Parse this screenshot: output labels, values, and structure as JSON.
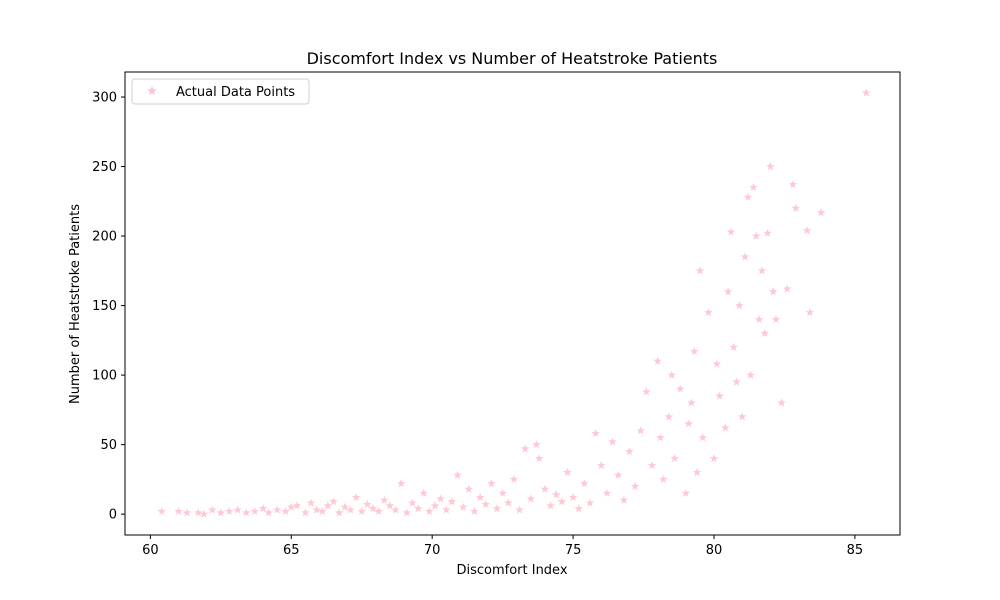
{
  "chart_data": {
    "type": "scatter",
    "title": "Discomfort Index vs Number of Heatstroke Patients",
    "xlabel": "Discomfort Index",
    "ylabel": "Number of Heatstroke Patients",
    "xlim": [
      59.1,
      86.6
    ],
    "ylim": [
      -15,
      318
    ],
    "xticks": [
      60,
      65,
      70,
      75,
      80,
      85
    ],
    "yticks": [
      0,
      50,
      100,
      150,
      200,
      250,
      300
    ],
    "grid": false,
    "legend_position": "top-left",
    "marker": "star",
    "marker_color": "#ffc0cb",
    "series": [
      {
        "name": "Actual Data Points",
        "points": [
          [
            60.4,
            2
          ],
          [
            61.0,
            2
          ],
          [
            61.3,
            1
          ],
          [
            61.7,
            1
          ],
          [
            61.9,
            0
          ],
          [
            62.2,
            3
          ],
          [
            62.5,
            1
          ],
          [
            62.8,
            2
          ],
          [
            63.1,
            3
          ],
          [
            63.4,
            1
          ],
          [
            63.7,
            2
          ],
          [
            64.0,
            4
          ],
          [
            64.2,
            1
          ],
          [
            64.5,
            3
          ],
          [
            64.8,
            2
          ],
          [
            65.0,
            5
          ],
          [
            65.2,
            6
          ],
          [
            65.5,
            1
          ],
          [
            65.7,
            8
          ],
          [
            65.9,
            3
          ],
          [
            66.1,
            2
          ],
          [
            66.3,
            6
          ],
          [
            66.5,
            9
          ],
          [
            66.7,
            1
          ],
          [
            66.9,
            5
          ],
          [
            67.1,
            3
          ],
          [
            67.3,
            12
          ],
          [
            67.5,
            2
          ],
          [
            67.7,
            7
          ],
          [
            67.9,
            4
          ],
          [
            68.1,
            2
          ],
          [
            68.3,
            10
          ],
          [
            68.5,
            6
          ],
          [
            68.7,
            3
          ],
          [
            68.9,
            22
          ],
          [
            69.1,
            1
          ],
          [
            69.3,
            8
          ],
          [
            69.5,
            4
          ],
          [
            69.7,
            15
          ],
          [
            69.9,
            2
          ],
          [
            70.1,
            6
          ],
          [
            70.3,
            11
          ],
          [
            70.5,
            3
          ],
          [
            70.7,
            9
          ],
          [
            70.9,
            28
          ],
          [
            71.1,
            5
          ],
          [
            71.3,
            18
          ],
          [
            71.5,
            2
          ],
          [
            71.7,
            12
          ],
          [
            71.9,
            7
          ],
          [
            72.1,
            22
          ],
          [
            72.3,
            4
          ],
          [
            72.5,
            15
          ],
          [
            72.7,
            8
          ],
          [
            72.9,
            25
          ],
          [
            73.1,
            3
          ],
          [
            73.3,
            47
          ],
          [
            73.5,
            11
          ],
          [
            73.7,
            50
          ],
          [
            73.8,
            40
          ],
          [
            74.0,
            18
          ],
          [
            74.2,
            6
          ],
          [
            74.4,
            14
          ],
          [
            74.6,
            9
          ],
          [
            74.8,
            30
          ],
          [
            75.0,
            12
          ],
          [
            75.2,
            4
          ],
          [
            75.4,
            22
          ],
          [
            75.6,
            8
          ],
          [
            75.8,
            58
          ],
          [
            76.0,
            35
          ],
          [
            76.2,
            15
          ],
          [
            76.4,
            52
          ],
          [
            76.6,
            28
          ],
          [
            76.8,
            10
          ],
          [
            77.0,
            45
          ],
          [
            77.2,
            20
          ],
          [
            77.4,
            60
          ],
          [
            77.6,
            88
          ],
          [
            77.8,
            35
          ],
          [
            78.0,
            110
          ],
          [
            78.1,
            55
          ],
          [
            78.2,
            25
          ],
          [
            78.4,
            70
          ],
          [
            78.5,
            100
          ],
          [
            78.6,
            40
          ],
          [
            78.8,
            90
          ],
          [
            79.0,
            15
          ],
          [
            79.1,
            65
          ],
          [
            79.2,
            80
          ],
          [
            79.3,
            117
          ],
          [
            79.4,
            30
          ],
          [
            79.5,
            175
          ],
          [
            79.6,
            55
          ],
          [
            79.8,
            145
          ],
          [
            80.0,
            40
          ],
          [
            80.1,
            108
          ],
          [
            80.2,
            85
          ],
          [
            80.4,
            62
          ],
          [
            80.5,
            160
          ],
          [
            80.6,
            203
          ],
          [
            80.7,
            120
          ],
          [
            80.8,
            95
          ],
          [
            80.9,
            150
          ],
          [
            81.0,
            70
          ],
          [
            81.1,
            185
          ],
          [
            81.2,
            228
          ],
          [
            81.3,
            100
          ],
          [
            81.4,
            235
          ],
          [
            81.5,
            200
          ],
          [
            81.6,
            140
          ],
          [
            81.7,
            175
          ],
          [
            81.8,
            130
          ],
          [
            81.9,
            202
          ],
          [
            82.0,
            250
          ],
          [
            82.1,
            160
          ],
          [
            82.2,
            140
          ],
          [
            82.4,
            80
          ],
          [
            82.6,
            162
          ],
          [
            82.8,
            237
          ],
          [
            82.9,
            220
          ],
          [
            83.3,
            204
          ],
          [
            83.4,
            145
          ],
          [
            83.8,
            217
          ],
          [
            85.4,
            303
          ]
        ]
      }
    ]
  }
}
